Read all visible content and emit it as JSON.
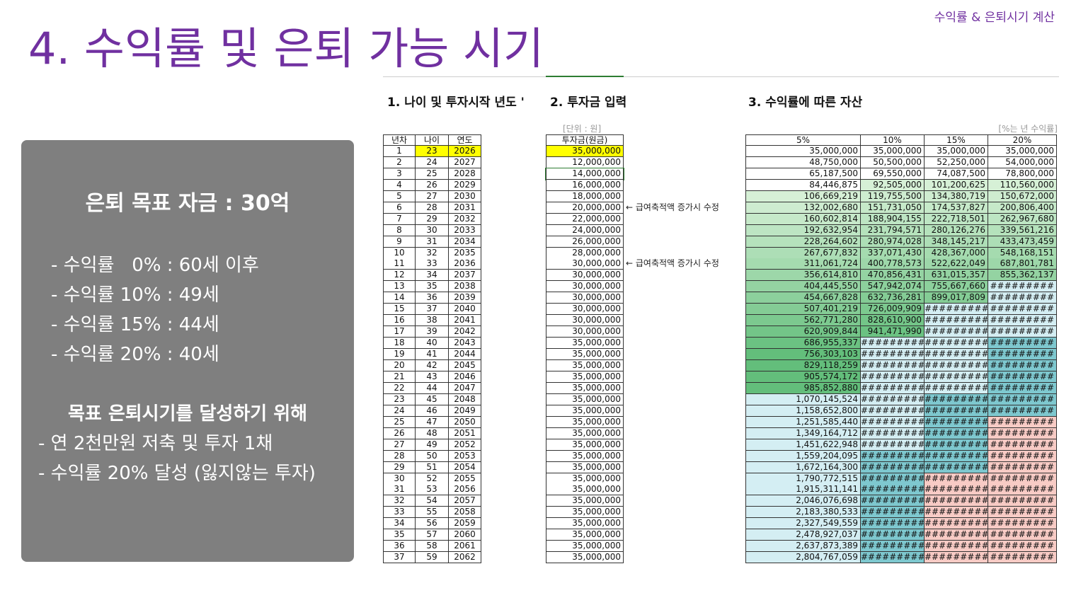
{
  "header": {
    "title": "4. 수익률 및 은퇴 가능 시기",
    "tag": "수익률 & 은퇴시기 계산"
  },
  "panel": {
    "heading": "은퇴 목표 자금 : 30억",
    "items": [
      "- 수익률   0% : 60세 이후",
      "- 수익률 10% : 49세",
      "- 수익률 15% : 44세",
      "- 수익률 20% : 40세"
    ],
    "subheading": "목표 은퇴시기를 달성하기 위해",
    "notes": [
      "- 연 2천만원 저축 및 투자 1채",
      "- 수익률 20% 달성 (잃지않는 투자)"
    ]
  },
  "sheet": {
    "section_titles": [
      "1. 나이 및 투자시작 년도 '",
      "2. 투자금 입력",
      "3. 수익률에 따른 자산"
    ],
    "unit_note": "[단위 : 원]",
    "rate_note": "[%는 년 수익률]",
    "columns": [
      "년차",
      "나이",
      "연도",
      "투자금(원금)",
      "5%",
      "10%",
      "15%",
      "20%"
    ],
    "annotations": [
      "← 급여축적액 증가시 수정",
      "← 급여축적액 증가시 수정"
    ],
    "rows": [
      [
        "1",
        "23",
        "2026",
        "35,000,000",
        "35,000,000",
        "35,000,000",
        "35,000,000",
        "35,000,000"
      ],
      [
        "2",
        "24",
        "2027",
        "12,000,000",
        "48,750,000",
        "50,500,000",
        "52,250,000",
        "54,000,000"
      ],
      [
        "3",
        "25",
        "2028",
        "14,000,000",
        "65,187,500",
        "69,550,000",
        "74,087,500",
        "78,800,000"
      ],
      [
        "4",
        "26",
        "2029",
        "16,000,000",
        "84,446,875",
        "92,505,000",
        "101,200,625",
        "110,560,000"
      ],
      [
        "5",
        "27",
        "2030",
        "18,000,000",
        "106,669,219",
        "119,755,500",
        "134,380,719",
        "150,672,000"
      ],
      [
        "6",
        "28",
        "2031",
        "20,000,000",
        "132,002,680",
        "151,731,050",
        "174,537,827",
        "200,806,400"
      ],
      [
        "7",
        "29",
        "2032",
        "22,000,000",
        "160,602,814",
        "188,904,155",
        "222,718,501",
        "262,967,680"
      ],
      [
        "8",
        "30",
        "2033",
        "24,000,000",
        "192,632,954",
        "231,794,571",
        "280,126,276",
        "339,561,216"
      ],
      [
        "9",
        "31",
        "2034",
        "26,000,000",
        "228,264,602",
        "280,974,028",
        "348,145,217",
        "433,473,459"
      ],
      [
        "10",
        "32",
        "2035",
        "28,000,000",
        "267,677,832",
        "337,071,430",
        "428,367,000",
        "548,168,151"
      ],
      [
        "11",
        "33",
        "2036",
        "30,000,000",
        "311,061,724",
        "400,778,573",
        "522,622,049",
        "687,801,781"
      ],
      [
        "12",
        "34",
        "2037",
        "30,000,000",
        "356,614,810",
        "470,856,431",
        "631,015,357",
        "855,362,137"
      ],
      [
        "13",
        "35",
        "2038",
        "30,000,000",
        "404,445,550",
        "547,942,074",
        "755,667,660",
        "#########"
      ],
      [
        "14",
        "36",
        "2039",
        "30,000,000",
        "454,667,828",
        "632,736,281",
        "899,017,809",
        "#########"
      ],
      [
        "15",
        "37",
        "2040",
        "30,000,000",
        "507,401,219",
        "726,009,909",
        "#########",
        "#########"
      ],
      [
        "16",
        "38",
        "2041",
        "30,000,000",
        "562,771,280",
        "828,610,900",
        "#########",
        "#########"
      ],
      [
        "17",
        "39",
        "2042",
        "30,000,000",
        "620,909,844",
        "941,471,990",
        "#########",
        "#########"
      ],
      [
        "18",
        "40",
        "2043",
        "35,000,000",
        "686,955,337",
        "#########",
        "#########",
        "#########"
      ],
      [
        "19",
        "41",
        "2044",
        "35,000,000",
        "756,303,103",
        "#########",
        "#########",
        "#########"
      ],
      [
        "20",
        "42",
        "2045",
        "35,000,000",
        "829,118,259",
        "#########",
        "#########",
        "#########"
      ],
      [
        "21",
        "43",
        "2046",
        "35,000,000",
        "905,574,172",
        "#########",
        "#########",
        "#########"
      ],
      [
        "22",
        "44",
        "2047",
        "35,000,000",
        "985,852,880",
        "#########",
        "#########",
        "#########"
      ],
      [
        "23",
        "45",
        "2048",
        "35,000,000",
        "1,070,145,524",
        "#########",
        "#########",
        "#########"
      ],
      [
        "24",
        "46",
        "2049",
        "35,000,000",
        "1,158,652,800",
        "#########",
        "#########",
        "#########"
      ],
      [
        "25",
        "47",
        "2050",
        "35,000,000",
        "1,251,585,440",
        "#########",
        "#########",
        "#########"
      ],
      [
        "26",
        "48",
        "2051",
        "35,000,000",
        "1,349,164,712",
        "#########",
        "#########",
        "#########"
      ],
      [
        "27",
        "49",
        "2052",
        "35,000,000",
        "1,451,622,948",
        "#########",
        "#########",
        "#########"
      ],
      [
        "28",
        "50",
        "2053",
        "35,000,000",
        "1,559,204,095",
        "#########",
        "#########",
        "#########"
      ],
      [
        "29",
        "51",
        "2054",
        "35,000,000",
        "1,672,164,300",
        "#########",
        "#########",
        "#########"
      ],
      [
        "30",
        "52",
        "2055",
        "35,000,000",
        "1,790,772,515",
        "#########",
        "#########",
        "#########"
      ],
      [
        "31",
        "53",
        "2056",
        "35,000,000",
        "1,915,311,141",
        "#########",
        "#########",
        "#########"
      ],
      [
        "32",
        "54",
        "2057",
        "35,000,000",
        "2,046,076,698",
        "#########",
        "#########",
        "#########"
      ],
      [
        "33",
        "55",
        "2058",
        "35,000,000",
        "2,183,380,533",
        "#########",
        "#########",
        "#########"
      ],
      [
        "34",
        "56",
        "2059",
        "35,000,000",
        "2,327,549,559",
        "#########",
        "#########",
        "#########"
      ],
      [
        "35",
        "57",
        "2060",
        "35,000,000",
        "2,478,927,037",
        "#########",
        "#########",
        "#########"
      ],
      [
        "36",
        "58",
        "2061",
        "35,000,000",
        "2,637,873,389",
        "#########",
        "#########",
        "#########"
      ],
      [
        "37",
        "59",
        "2062",
        "35,000,000",
        "2,804,767,059",
        "#########",
        "#########",
        "#########"
      ]
    ]
  }
}
